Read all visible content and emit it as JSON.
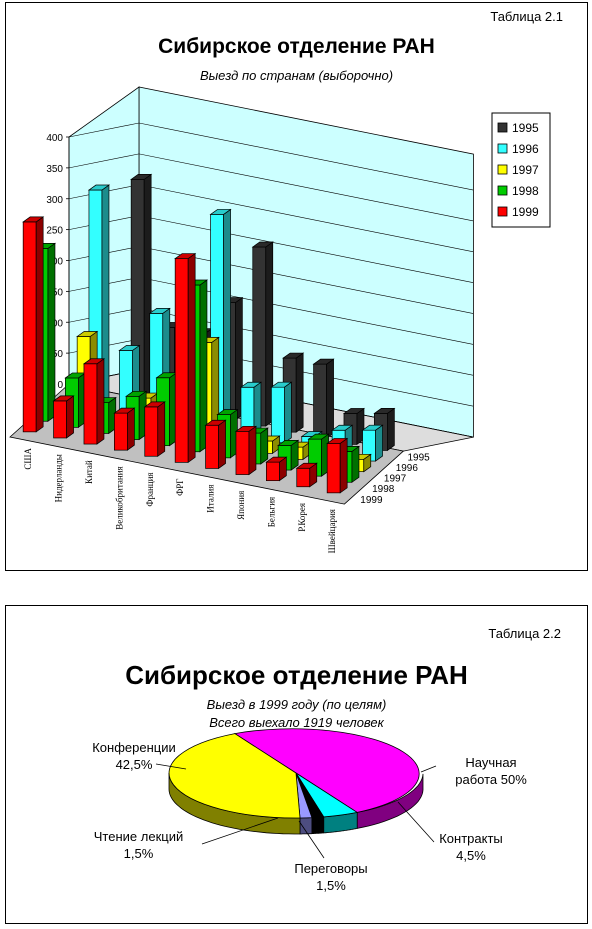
{
  "chart1": {
    "table_label": "Таблица 2.1",
    "title": "Сибирское отделение РАН",
    "subtitle": "Выезд по странам (выборочно)"
  },
  "chart2": {
    "table_label": "Таблица 2.2",
    "title": "Сибирское отделение РАН",
    "subtitle_line1": "Выезд в 1999 году  (по целям)",
    "subtitle_line2": "Всего выехало 1919 человек"
  },
  "chart_data": [
    {
      "type": "bar",
      "title": "Сибирское отделение РАН",
      "subtitle": "Выезд по странам (выборочно)",
      "categories": [
        "США",
        "Нидерланды",
        "Китай",
        "Великобритания",
        "Франция",
        "ФРГ",
        "Италия",
        "Япония",
        "Бельгия",
        "Р.Корея",
        "Швейцария"
      ],
      "series": [
        {
          "name": "1995",
          "color": "#333333",
          "values": [
            null,
            null,
            360,
            130,
            130,
            190,
            290,
            120,
            120,
            50,
            60
          ]
        },
        {
          "name": "1996",
          "color": "#33ffff",
          "values": [
            null,
            350,
            100,
            170,
            null,
            350,
            80,
            90,
            20,
            40,
            50
          ]
        },
        {
          "name": "1997",
          "color": "#ffff00",
          "values": [
            null,
            130,
            null,
            50,
            null,
            160,
            null,
            20,
            20,
            null,
            20
          ]
        },
        {
          "name": "1998",
          "color": "#00cc00",
          "values": [
            280,
            80,
            50,
            70,
            110,
            270,
            70,
            50,
            40,
            60,
            50
          ]
        },
        {
          "name": "1999",
          "color": "#ff0000",
          "values": [
            340,
            60,
            130,
            60,
            80,
            330,
            70,
            70,
            30,
            30,
            80
          ]
        }
      ],
      "ylim": [
        0,
        400
      ],
      "y_ticks": [
        "0",
        "50",
        "100",
        "150",
        "200",
        "250",
        "300",
        "350",
        "400"
      ],
      "depth_labels": [
        "1995",
        "1996",
        "1997",
        "1998",
        "1999"
      ],
      "legend_position": "right",
      "grid": true
    },
    {
      "type": "pie",
      "title": "Сибирское отделение РАН",
      "subtitle": "Выезд в 1999 году  (по целям) Всего выехало 1919 человек",
      "slices": [
        {
          "name": "Научная работа",
          "value": 50,
          "label_line1": "Научная",
          "label_line2": "работа 50%",
          "color": "#ff00ff",
          "side_color": "#800080"
        },
        {
          "name": "Контракты",
          "value": 4.5,
          "label_line1": "Контракты",
          "label_line2": "4,5%",
          "color": "#00ffff",
          "side_color": "#008080"
        },
        {
          "name": "Переговоры",
          "value": 1.5,
          "label_line1": "Переговоры",
          "label_line2": "1,5%",
          "color": "#000000",
          "side_color": "#000000"
        },
        {
          "name": "Чтение лекций",
          "value": 1.5,
          "label_line1": "Чтение лекций",
          "label_line2": "1,5%",
          "color": "#9999ff",
          "side_color": "#4d4d80"
        },
        {
          "name": "Конференции",
          "value": 42.5,
          "label_line1": "Конференции",
          "label_line2": "42,5%",
          "color": "#ffff00",
          "side_color": "#808000"
        }
      ]
    }
  ]
}
